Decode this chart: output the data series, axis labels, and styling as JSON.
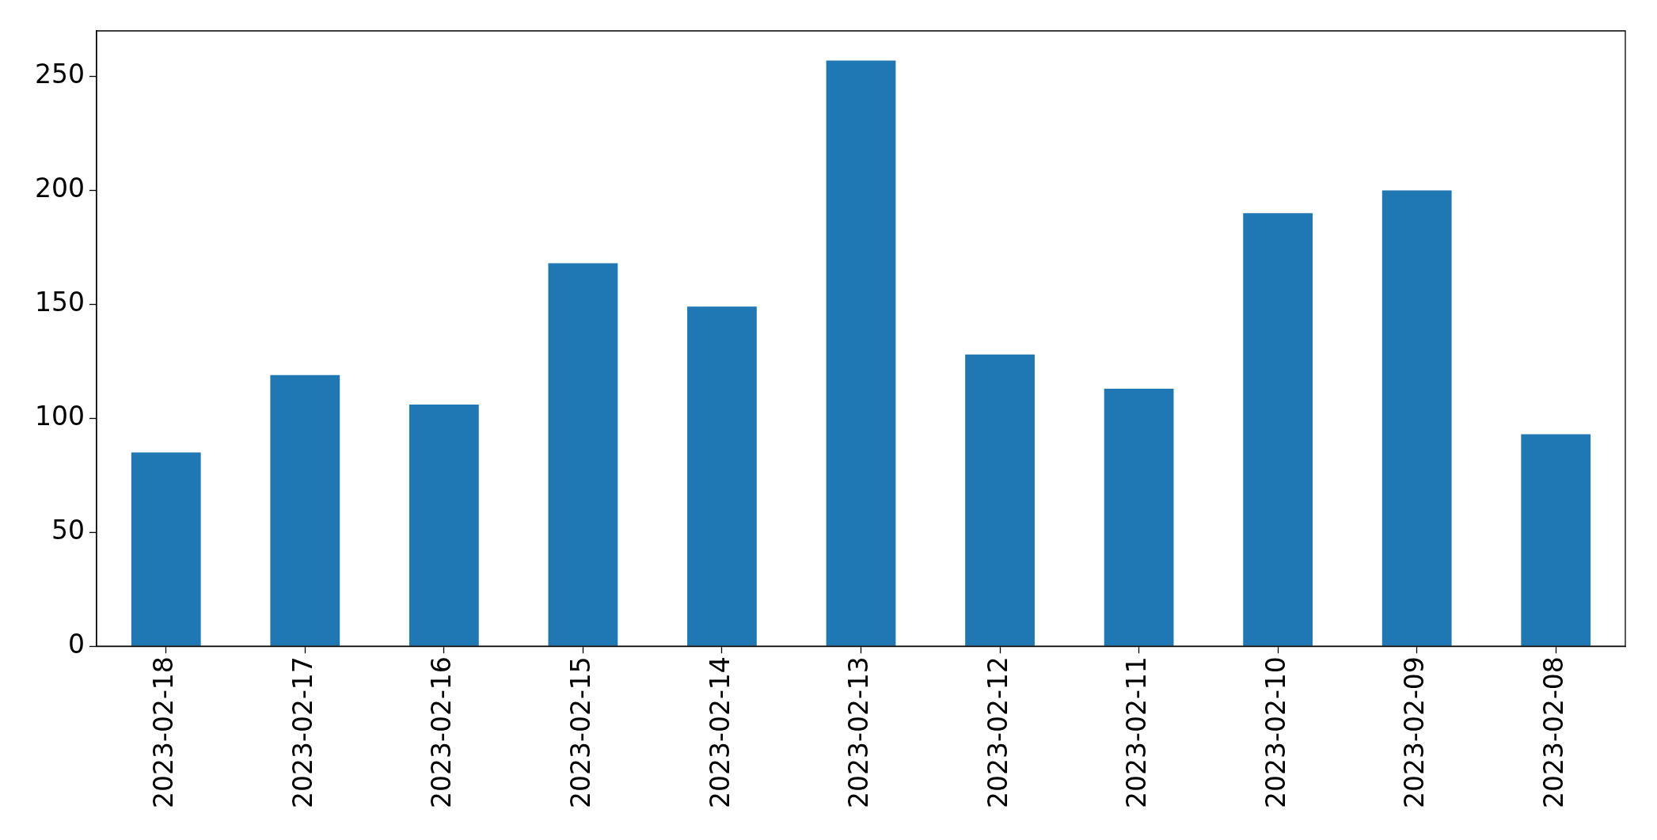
{
  "chart_data": {
    "type": "bar",
    "categories": [
      "2023-02-18",
      "2023-02-17",
      "2023-02-16",
      "2023-02-15",
      "2023-02-14",
      "2023-02-13",
      "2023-02-12",
      "2023-02-11",
      "2023-02-10",
      "2023-02-09",
      "2023-02-08"
    ],
    "values": [
      85,
      119,
      106,
      168,
      149,
      257,
      128,
      113,
      190,
      200,
      93
    ],
    "color": "#1f77b4",
    "ylim": [
      0,
      270
    ],
    "yticks": [
      0,
      50,
      100,
      150,
      200,
      250
    ],
    "grid": false,
    "legend": false
  }
}
